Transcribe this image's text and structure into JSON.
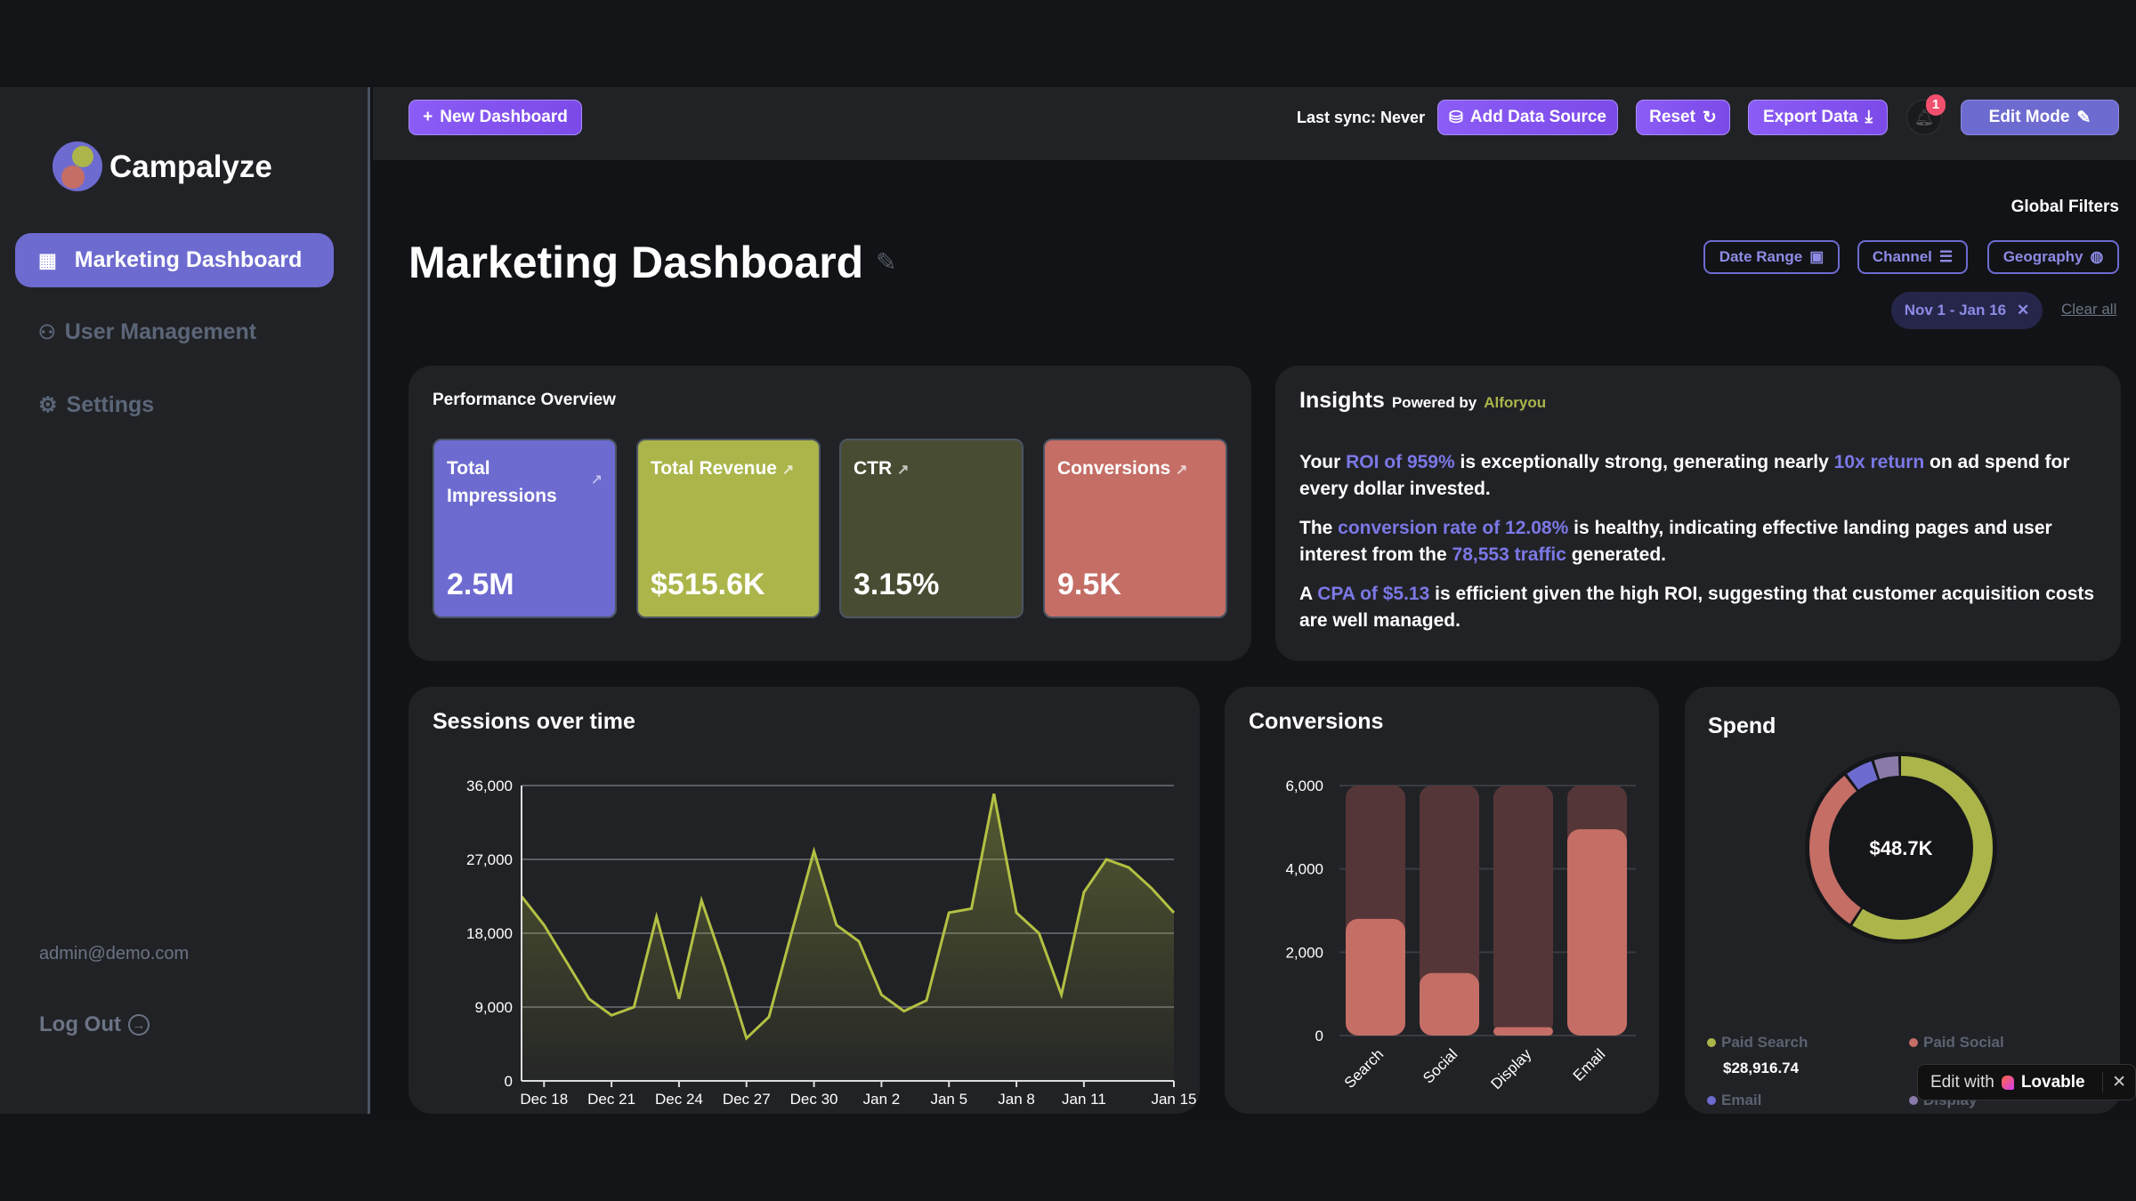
{
  "brand": {
    "name": "Campalyze"
  },
  "sidebar": {
    "items": [
      {
        "label": "Marketing Dashboard",
        "icon": "grid-icon",
        "active": true
      },
      {
        "label": "User Management",
        "icon": "users-icon"
      },
      {
        "label": "Settings",
        "icon": "gear-icon"
      }
    ],
    "user_email": "admin@demo.com",
    "logout": "Log Out"
  },
  "topbar": {
    "new_dashboard": "New Dashboard",
    "last_sync": "Last sync: Never",
    "add_source": "Add Data Source",
    "reset": "Reset",
    "export": "Export Data",
    "notifications": "1",
    "edit_mode": "Edit Mode"
  },
  "header": {
    "title": "Marketing Dashboard",
    "global_filters": "Global Filters",
    "filters": [
      "Date Range",
      "Channel",
      "Geography"
    ],
    "active_chip": "Nov 1 - Jan 16",
    "clear_all": "Clear all"
  },
  "performance": {
    "title": "Performance Overview",
    "kpis": [
      {
        "label": "Total Impressions",
        "value": "2.5M",
        "color": "#6e6bd0"
      },
      {
        "label": "Total Revenue",
        "value": "$515.6K",
        "color": "#abb54a"
      },
      {
        "label": "CTR",
        "value": "3.15%",
        "color": "#484c32"
      },
      {
        "label": "Conversions",
        "value": "9.5K",
        "color": "#c46e66"
      }
    ]
  },
  "insights": {
    "title": "Insights",
    "powered_by": "Powered by",
    "provider": "Alforyou",
    "p1": [
      "Your ",
      "ROI of 959%",
      " is exceptionally strong, generating nearly ",
      "10x return",
      " on ad spend for every dollar invested."
    ],
    "p2": [
      "The ",
      "conversion rate of 12.08%",
      " is healthy, indicating effective landing pages and user interest from the ",
      "78,553 traffic",
      " generated."
    ],
    "p3": [
      "A ",
      "CPA of $5.13",
      " is efficient given the high ROI, suggesting that customer acquisition costs are well managed."
    ]
  },
  "chart_data": [
    {
      "type": "area",
      "title": "Sessions over time",
      "ylim": [
        0,
        36000
      ],
      "yticks": [
        "0",
        "9,000",
        "18,000",
        "27,000",
        "36,000"
      ],
      "xticks": [
        "Dec 18",
        "Dec 21",
        "Dec 24",
        "Dec 27",
        "Dec 30",
        "Jan 2",
        "Jan 5",
        "Jan 8",
        "Jan 11",
        "Jan 15"
      ],
      "x": [
        "Dec 17",
        "Dec 18",
        "Dec 19",
        "Dec 20",
        "Dec 21",
        "Dec 22",
        "Dec 23",
        "Dec 24",
        "Dec 25",
        "Dec 26",
        "Dec 27",
        "Dec 28",
        "Dec 29",
        "Dec 30",
        "Dec 31",
        "Jan 1",
        "Jan 2",
        "Jan 3",
        "Jan 4",
        "Jan 5",
        "Jan 6",
        "Jan 7",
        "Jan 8",
        "Jan 9",
        "Jan 10",
        "Jan 11",
        "Jan 12",
        "Jan 13",
        "Jan 14",
        "Jan 15"
      ],
      "values": [
        22500,
        19000,
        14500,
        10000,
        8000,
        9000,
        20000,
        10000,
        22000,
        14000,
        5200,
        7800,
        18000,
        28000,
        19000,
        17000,
        10500,
        8500,
        9800,
        20500,
        21000,
        35000,
        20500,
        18000,
        10500,
        23000,
        27000,
        26000,
        23500,
        20500
      ],
      "color": "#b3c043",
      "grid": true
    },
    {
      "type": "bar",
      "title": "Conversions",
      "ylim": [
        0,
        6000
      ],
      "yticks": [
        "0",
        "2,000",
        "4,000",
        "6,000"
      ],
      "categories": [
        "Search",
        "Social",
        "Display",
        "Email"
      ],
      "values": [
        2800,
        1500,
        200,
        4950
      ],
      "color": "#c46e66",
      "track_color": "#553638"
    },
    {
      "type": "pie",
      "title": "Spend",
      "center_label": "$48.7K",
      "series": [
        {
          "name": "Paid Search",
          "share": 59.4,
          "value": "$28,916.74",
          "color": "#abb54a"
        },
        {
          "name": "Paid Social",
          "share": 30.5,
          "color": "#c46e66"
        },
        {
          "name": "Email",
          "share": 5.3,
          "color": "#6e6bd0"
        },
        {
          "name": "Display",
          "share": 4.8,
          "color": "#8a7aa8"
        }
      ]
    }
  ],
  "badge": {
    "text": "Edit with",
    "brand": "Lovable"
  }
}
